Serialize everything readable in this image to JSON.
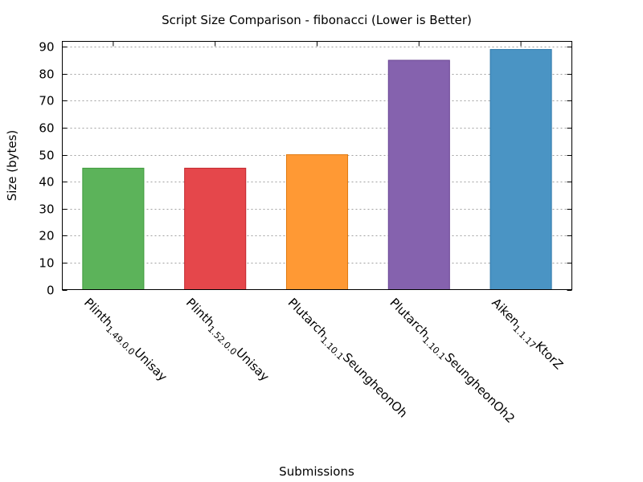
{
  "chart_data": {
    "type": "bar",
    "title": "Script Size Comparison - fibonacci (Lower is Better)",
    "xlabel": "Submissions",
    "ylabel": "Size (bytes)",
    "ylim": [
      0,
      92
    ],
    "yticks": [
      0,
      10,
      20,
      30,
      40,
      50,
      60,
      70,
      80,
      90
    ],
    "grid": true,
    "categories": [
      {
        "main": "Plinth",
        "sub": "1.49.0.0",
        "tail": "Unisay"
      },
      {
        "main": "Plinth",
        "sub": "1.52.0.0",
        "tail": "Unisay"
      },
      {
        "main": "Plutarch",
        "sub": "1.10.1",
        "tail": "SeungheonOh"
      },
      {
        "main": "Plutarch",
        "sub": "1.10.1",
        "tail": "SeungheonOh2"
      },
      {
        "main": "Aiken",
        "sub": "1.1.17",
        "tail": "KtorZ"
      }
    ],
    "values": [
      45,
      45,
      50,
      85,
      89
    ],
    "colors": [
      "#5cb35a",
      "#e5474b",
      "#ff9934",
      "#8562ae",
      "#4a94c4"
    ],
    "stroke_colors": [
      "#3e9a3c",
      "#c2262c",
      "#e07a10",
      "#6a4594",
      "#2f78aa"
    ]
  }
}
